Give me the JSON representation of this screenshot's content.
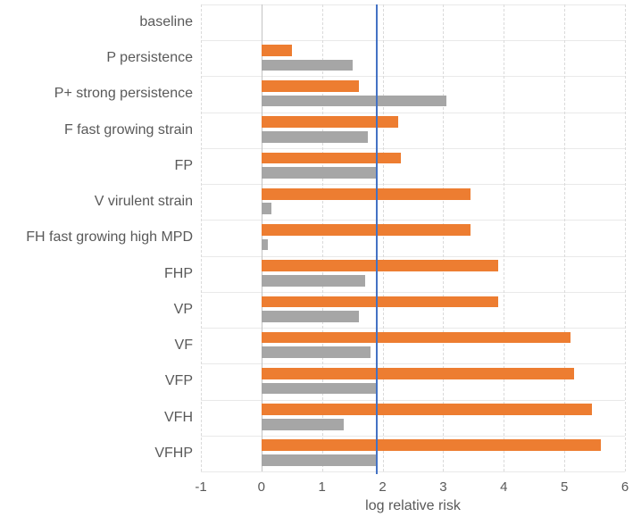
{
  "chart_data": {
    "type": "bar",
    "orientation": "horizontal",
    "title": "",
    "xlabel": "log relative risk",
    "ylabel": "",
    "xlim": [
      -1,
      6
    ],
    "xticks": [
      -1,
      0,
      1,
      2,
      3,
      4,
      5,
      6
    ],
    "grid": "vertical-dashed-with-row-separators",
    "legend": "none",
    "categories": [
      "baseline",
      "P persistence",
      "P+ strong persistence",
      "F fast growing strain",
      "FP",
      "V virulent strain",
      "FH fast growing high MPD",
      "FHP",
      "VP",
      "VF",
      "VFP",
      "VFH",
      "VFHP"
    ],
    "series": [
      {
        "name": "orange",
        "color": "#ED7D31",
        "values": [
          0,
          0.5,
          1.6,
          2.25,
          2.3,
          3.45,
          3.45,
          3.9,
          3.9,
          5.1,
          5.15,
          5.45,
          5.6
        ]
      },
      {
        "name": "gray",
        "color": "#A6A6A6",
        "values": [
          0,
          1.5,
          3.05,
          1.75,
          1.9,
          0.15,
          0.1,
          1.7,
          1.6,
          1.8,
          1.9,
          1.35,
          1.9
        ]
      }
    ],
    "reference_line": {
      "value": 1.9,
      "color": "#4472C4"
    },
    "colors": {
      "grid_horizontal": "#e9e9e9",
      "grid_vertical": "#dadada",
      "zero_axis": "#c3c3c3",
      "text": "#595959"
    }
  }
}
